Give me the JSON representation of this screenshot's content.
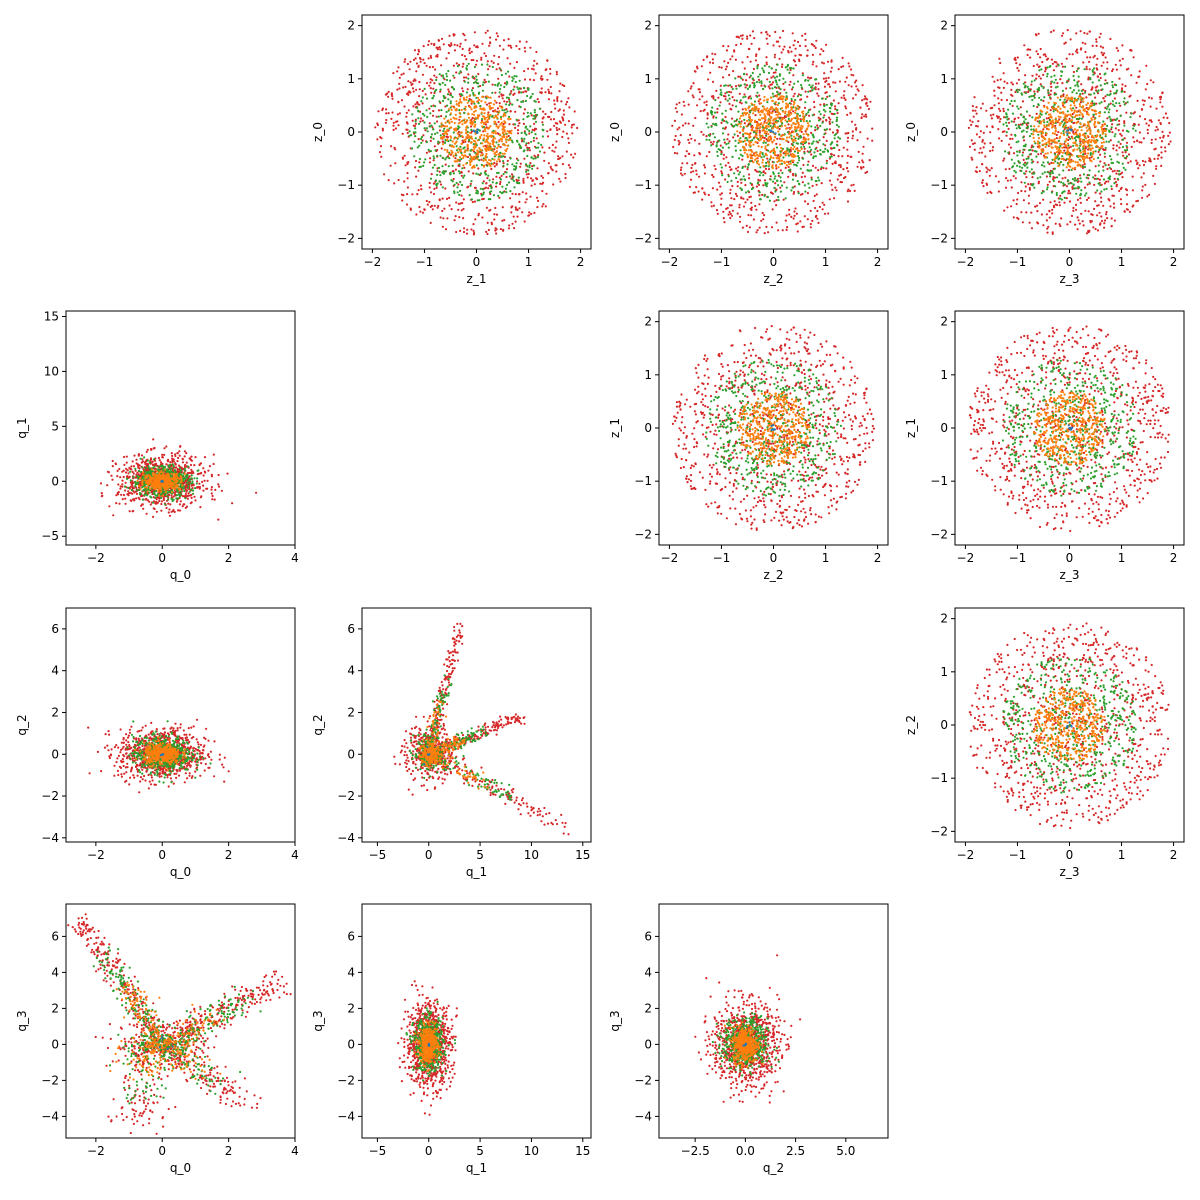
{
  "figure": {
    "background": "#ffffff",
    "series_colors": {
      "blue": "#1f77b4",
      "orange": "#ff7f0e",
      "green": "#2ca02c",
      "red": "#d62728"
    }
  },
  "chart_data": [
    {
      "type": "scatter",
      "panel": "z_1-vs-z_0",
      "grid": false,
      "xlabel": "z_1",
      "ylabel": "z_0",
      "xlim": [
        -2.2,
        2.2
      ],
      "ylim": [
        -2.2,
        2.2
      ],
      "xticks": [
        "-2",
        "-1",
        "0",
        "1",
        "2"
      ],
      "yticks": [
        "-2",
        "-1",
        "0",
        "1",
        "2"
      ],
      "shape": "disc",
      "layers": [
        {
          "color": "red",
          "spread": [
            1.95,
            1.95
          ],
          "count": 900
        },
        {
          "color": "green",
          "spread": [
            1.3,
            1.3
          ],
          "count": 520
        },
        {
          "color": "orange",
          "spread": [
            0.7,
            0.7
          ],
          "count": 420
        },
        {
          "color": "blue",
          "spread": [
            0.06,
            0.06
          ],
          "count": 6
        }
      ]
    },
    {
      "type": "scatter",
      "panel": "z_2-vs-z_0",
      "grid": false,
      "xlabel": "z_2",
      "ylabel": "z_0",
      "xlim": [
        -2.2,
        2.2
      ],
      "ylim": [
        -2.2,
        2.2
      ],
      "xticks": [
        "-2",
        "-1",
        "0",
        "1",
        "2"
      ],
      "yticks": [
        "-2",
        "-1",
        "0",
        "1",
        "2"
      ],
      "shape": "disc",
      "layers": [
        {
          "color": "red",
          "spread": [
            1.95,
            1.95
          ],
          "count": 900
        },
        {
          "color": "green",
          "spread": [
            1.3,
            1.3
          ],
          "count": 520
        },
        {
          "color": "orange",
          "spread": [
            0.7,
            0.7
          ],
          "count": 420
        },
        {
          "color": "blue",
          "spread": [
            0.06,
            0.06
          ],
          "count": 6
        }
      ]
    },
    {
      "type": "scatter",
      "panel": "z_3-vs-z_0",
      "grid": false,
      "xlabel": "z_3",
      "ylabel": "z_0",
      "xlim": [
        -2.2,
        2.2
      ],
      "ylim": [
        -2.2,
        2.2
      ],
      "xticks": [
        "-2",
        "-1",
        "0",
        "1",
        "2"
      ],
      "yticks": [
        "-2",
        "-1",
        "0",
        "1",
        "2"
      ],
      "shape": "disc",
      "layers": [
        {
          "color": "red",
          "spread": [
            1.95,
            1.95
          ],
          "count": 900
        },
        {
          "color": "green",
          "spread": [
            1.3,
            1.3
          ],
          "count": 520
        },
        {
          "color": "orange",
          "spread": [
            0.7,
            0.7
          ],
          "count": 420
        },
        {
          "color": "blue",
          "spread": [
            0.06,
            0.06
          ],
          "count": 6
        }
      ]
    },
    {
      "type": "scatter",
      "panel": "q_0-vs-q_1",
      "grid": false,
      "xlabel": "q_0",
      "ylabel": "q_1",
      "xlim": [
        -2.9,
        4.0
      ],
      "ylim": [
        -5.8,
        15.5
      ],
      "xticks": [
        "-2",
        "0",
        "2",
        "4"
      ],
      "yticks": [
        "-5",
        "0",
        "5",
        "10",
        "15"
      ],
      "shape": "blob",
      "layers": [
        {
          "color": "red",
          "spread": [
            1.2,
            2.1
          ],
          "count": 900
        },
        {
          "color": "green",
          "spread": [
            0.8,
            1.3
          ],
          "count": 500
        },
        {
          "color": "orange",
          "spread": [
            0.5,
            0.7
          ],
          "count": 380
        },
        {
          "color": "blue",
          "spread": [
            0.05,
            0.1
          ],
          "count": 5
        }
      ]
    },
    {
      "type": "scatter",
      "panel": "z_2-vs-z_1",
      "grid": false,
      "xlabel": "z_2",
      "ylabel": "z_1",
      "xlim": [
        -2.2,
        2.2
      ],
      "ylim": [
        -2.2,
        2.2
      ],
      "xticks": [
        "-2",
        "-1",
        "0",
        "1",
        "2"
      ],
      "yticks": [
        "-2",
        "-1",
        "0",
        "1",
        "2"
      ],
      "shape": "disc",
      "layers": [
        {
          "color": "red",
          "spread": [
            1.95,
            1.95
          ],
          "count": 900
        },
        {
          "color": "green",
          "spread": [
            1.3,
            1.3
          ],
          "count": 520
        },
        {
          "color": "orange",
          "spread": [
            0.7,
            0.7
          ],
          "count": 420
        },
        {
          "color": "blue",
          "spread": [
            0.06,
            0.06
          ],
          "count": 6
        }
      ]
    },
    {
      "type": "scatter",
      "panel": "z_3-vs-z_1",
      "grid": false,
      "xlabel": "z_3",
      "ylabel": "z_1",
      "xlim": [
        -2.2,
        2.2
      ],
      "ylim": [
        -2.2,
        2.2
      ],
      "xticks": [
        "-2",
        "-1",
        "0",
        "1",
        "2"
      ],
      "yticks": [
        "-2",
        "-1",
        "0",
        "1",
        "2"
      ],
      "shape": "disc",
      "layers": [
        {
          "color": "red",
          "spread": [
            1.95,
            1.95
          ],
          "count": 900
        },
        {
          "color": "green",
          "spread": [
            1.3,
            1.3
          ],
          "count": 520
        },
        {
          "color": "orange",
          "spread": [
            0.7,
            0.7
          ],
          "count": 420
        },
        {
          "color": "blue",
          "spread": [
            0.06,
            0.06
          ],
          "count": 6
        }
      ]
    },
    {
      "type": "scatter",
      "panel": "q_0-vs-q_2",
      "grid": false,
      "xlabel": "q_0",
      "ylabel": "q_2",
      "xlim": [
        -2.9,
        4.0
      ],
      "ylim": [
        -4.2,
        7.0
      ],
      "xticks": [
        "-2",
        "0",
        "2",
        "4"
      ],
      "yticks": [
        "-4",
        "-2",
        "0",
        "2",
        "4",
        "6"
      ],
      "shape": "blob",
      "layers": [
        {
          "color": "red",
          "spread": [
            1.2,
            1.1
          ],
          "count": 900
        },
        {
          "color": "green",
          "spread": [
            0.8,
            0.8
          ],
          "count": 500
        },
        {
          "color": "orange",
          "spread": [
            0.5,
            0.45
          ],
          "count": 380
        },
        {
          "color": "blue",
          "spread": [
            0.05,
            0.05
          ],
          "count": 5
        }
      ]
    },
    {
      "type": "scatter",
      "panel": "q_1-vs-q_2",
      "grid": false,
      "xlabel": "q_1",
      "ylabel": "q_2",
      "xlim": [
        -6.5,
        15.8
      ],
      "ylim": [
        -4.2,
        7.0
      ],
      "xticks": [
        "-5",
        "0",
        "5",
        "10",
        "15"
      ],
      "yticks": [
        "-4",
        "-2",
        "0",
        "2",
        "4",
        "6"
      ],
      "shape": "arms",
      "layers": [
        {
          "color": "red",
          "spread": [
            1.0,
            1.0
          ],
          "count": 900
        },
        {
          "color": "green",
          "spread": [
            0.6,
            0.6
          ],
          "count": 420
        },
        {
          "color": "orange",
          "spread": [
            0.4,
            0.4
          ],
          "count": 300
        },
        {
          "color": "blue",
          "spread": [
            0.05,
            0.05
          ],
          "count": 5
        }
      ]
    },
    {
      "type": "scatter",
      "panel": "z_3-vs-z_2",
      "grid": false,
      "xlabel": "z_3",
      "ylabel": "z_2",
      "xlim": [
        -2.2,
        2.2
      ],
      "ylim": [
        -2.2,
        2.2
      ],
      "xticks": [
        "-2",
        "-1",
        "0",
        "1",
        "2"
      ],
      "yticks": [
        "-2",
        "-1",
        "0",
        "1",
        "2"
      ],
      "shape": "disc",
      "layers": [
        {
          "color": "red",
          "spread": [
            1.95,
            1.95
          ],
          "count": 900
        },
        {
          "color": "green",
          "spread": [
            1.3,
            1.3
          ],
          "count": 520
        },
        {
          "color": "orange",
          "spread": [
            0.7,
            0.7
          ],
          "count": 420
        },
        {
          "color": "blue",
          "spread": [
            0.06,
            0.06
          ],
          "count": 6
        }
      ]
    },
    {
      "type": "scatter",
      "panel": "q_0-vs-q_3",
      "grid": false,
      "xlabel": "q_0",
      "ylabel": "q_3",
      "xlim": [
        -2.9,
        4.0
      ],
      "ylim": [
        -5.2,
        7.8
      ],
      "xticks": [
        "-2",
        "0",
        "2",
        "4"
      ],
      "yticks": [
        "-4",
        "-2",
        "0",
        "2",
        "4",
        "6"
      ],
      "shape": "vshape",
      "layers": [
        {
          "color": "red",
          "spread": [
            1.0,
            1.0
          ],
          "count": 900
        },
        {
          "color": "green",
          "spread": [
            0.7,
            0.7
          ],
          "count": 500
        },
        {
          "color": "orange",
          "spread": [
            0.45,
            0.45
          ],
          "count": 300
        },
        {
          "color": "blue",
          "spread": [
            0.05,
            0.05
          ],
          "count": 5
        }
      ]
    },
    {
      "type": "scatter",
      "panel": "q_1-vs-q_3",
      "grid": false,
      "xlabel": "q_1",
      "ylabel": "q_3",
      "xlim": [
        -6.5,
        15.8
      ],
      "ylim": [
        -5.2,
        7.8
      ],
      "xticks": [
        "-5",
        "0",
        "5",
        "10",
        "15"
      ],
      "yticks": [
        "-4",
        "-2",
        "0",
        "2",
        "4",
        "6"
      ],
      "shape": "blob",
      "layers": [
        {
          "color": "red",
          "spread": [
            2.0,
            2.1
          ],
          "count": 900
        },
        {
          "color": "green",
          "spread": [
            1.3,
            1.3
          ],
          "count": 500
        },
        {
          "color": "orange",
          "spread": [
            0.8,
            0.9
          ],
          "count": 380
        },
        {
          "color": "blue",
          "spread": [
            0.08,
            0.08
          ],
          "count": 5
        }
      ]
    },
    {
      "type": "scatter",
      "panel": "q_2-vs-q_3",
      "grid": false,
      "xlabel": "q_2",
      "ylabel": "q_3",
      "xlim": [
        -4.3,
        7.1
      ],
      "ylim": [
        -5.2,
        7.8
      ],
      "xticks": [
        "-2.5",
        "0.0",
        "2.5",
        "5.0"
      ],
      "yticks": [
        "-4",
        "-2",
        "0",
        "2",
        "4",
        "6"
      ],
      "shape": "blob",
      "layers": [
        {
          "color": "red",
          "spread": [
            1.5,
            2.1
          ],
          "count": 900
        },
        {
          "color": "green",
          "spread": [
            1.0,
            1.3
          ],
          "count": 500
        },
        {
          "color": "orange",
          "spread": [
            0.55,
            0.9
          ],
          "count": 380
        },
        {
          "color": "blue",
          "spread": [
            0.06,
            0.08
          ],
          "count": 5
        }
      ]
    }
  ]
}
